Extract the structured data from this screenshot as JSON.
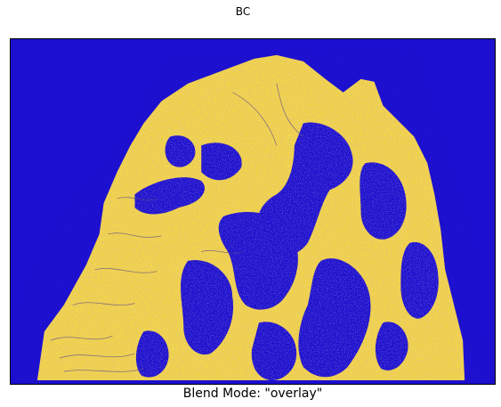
{
  "figure": {
    "title": "BC",
    "caption": "Blend Mode: \"overlay\""
  },
  "image": {
    "subject": "terrain-relief-overlay",
    "colors": {
      "background": "#1c0fcf",
      "highlight": "#f5d547",
      "texture": "#6b5aa0"
    }
  }
}
